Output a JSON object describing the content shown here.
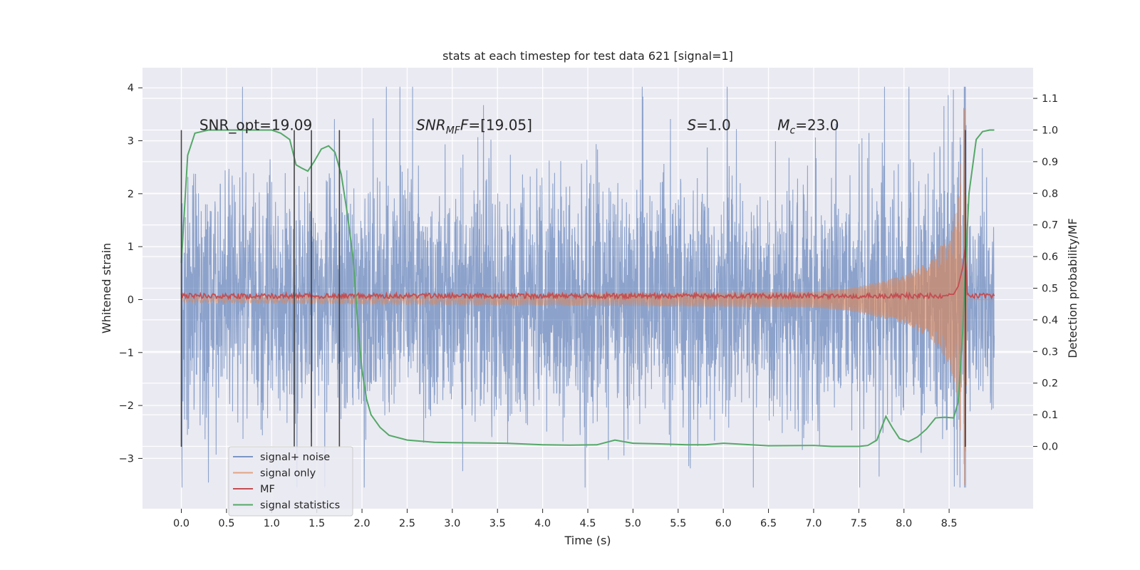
{
  "chart_data": {
    "type": "line",
    "title": "stats at each timestep for test data 621 [signal=1]",
    "xlabel": "Time (s)",
    "ylabel": "Whitened strain",
    "ylabel_right": "Detection probability/MF",
    "xlim": [
      -0.43,
      9.43
    ],
    "ylim": [
      -3.95,
      4.38
    ],
    "ylim_right": [
      -0.197,
      1.197
    ],
    "grid": true,
    "legend_placement": "lower-left",
    "x_ticks": [
      "0.0",
      "0.5",
      "1.0",
      "1.5",
      "2.0",
      "2.5",
      "3.0",
      "3.5",
      "4.0",
      "4.5",
      "5.0",
      "5.5",
      "6.0",
      "6.5",
      "7.0",
      "7.5",
      "8.0",
      "8.5"
    ],
    "x_tick_values": [
      0,
      0.5,
      1,
      1.5,
      2,
      2.5,
      3,
      3.5,
      4,
      4.5,
      5,
      5.5,
      6,
      6.5,
      7,
      7.5,
      8,
      8.5
    ],
    "y_ticks": [
      "−3",
      "−2",
      "−1",
      "0",
      "1",
      "2",
      "3",
      "4"
    ],
    "y_tick_values": [
      -3,
      -2,
      -1,
      0,
      1,
      2,
      3,
      4
    ],
    "y_right_ticks": [
      "0.0",
      "0.1",
      "0.2",
      "0.3",
      "0.4",
      "0.5",
      "0.6",
      "0.7",
      "0.8",
      "0.9",
      "1.0",
      "1.1"
    ],
    "y_right_tick_values": [
      0,
      0.1,
      0.2,
      0.3,
      0.4,
      0.5,
      0.6,
      0.7,
      0.8,
      0.9,
      1.0,
      1.1
    ],
    "annotations": [
      {
        "label": "SNR_opt=19.09",
        "x": 0.2,
        "y": 3.3
      },
      {
        "label": "SNR_MF=[19.05]",
        "x": 2.6,
        "y": 3.3,
        "base": "SNR",
        "sub": "MF",
        "tail": "F=[19.05]"
      },
      {
        "label": "S=1.0",
        "x": 5.6,
        "y": 3.3,
        "base": "S",
        "sub": "",
        "tail": "=1.0"
      },
      {
        "label": "M_c=23.0",
        "x": 6.6,
        "y": 3.3,
        "base": "M",
        "sub": "c",
        "tail": "=23.0"
      }
    ],
    "vertical_lines": {
      "x": [
        0.0,
        1.25,
        1.44,
        1.75,
        8.68
      ],
      "y_range": [
        -2.78,
        3.2
      ],
      "color": "#444444"
    },
    "series": [
      {
        "name": "signal+ noise",
        "color": "#4c72b0",
        "opacity": 0.5,
        "x_range": [
          0.0,
          9.0
        ],
        "samples": 3600,
        "band": [
          -1.55,
          1.55
        ],
        "extremes": [
          -3.55,
          4.02
        ]
      },
      {
        "name": "signal only",
        "color": "#dd8452",
        "opacity": 0.5,
        "description_points": {
          "t": [
            0.0,
            7.0,
            7.5,
            8.0,
            8.3,
            8.5,
            8.6,
            8.65,
            8.68,
            8.7,
            9.0
          ],
          "amplitude": [
            0.05,
            0.15,
            0.25,
            0.45,
            0.75,
            1.25,
            1.9,
            3.4,
            3.8,
            0.05,
            0.0
          ]
        }
      },
      {
        "name": "MF",
        "color": "#c44e52",
        "x_range": [
          0.0,
          9.0
        ],
        "level": 0.07,
        "spread": 0.06,
        "peak": {
          "x": [
            8.55,
            8.6,
            8.65,
            8.68,
            8.7
          ],
          "y": [
            0.1,
            0.25,
            0.6,
            1.0,
            0.1
          ]
        }
      },
      {
        "name": "signal statistics",
        "color": "#55a868",
        "axis": "right",
        "x": [
          0.0,
          0.07,
          0.15,
          0.3,
          0.5,
          0.8,
          1.0,
          1.1,
          1.2,
          1.27,
          1.33,
          1.4,
          1.47,
          1.55,
          1.63,
          1.7,
          1.77,
          1.83,
          1.9,
          1.95,
          2.0,
          2.05,
          2.1,
          2.2,
          2.3,
          2.5,
          2.8,
          3.0,
          3.3,
          3.6,
          4.0,
          4.3,
          4.6,
          4.8,
          5.0,
          5.3,
          5.6,
          5.8,
          6.0,
          6.5,
          7.0,
          7.2,
          7.5,
          7.6,
          7.7,
          7.8,
          7.87,
          7.95,
          8.05,
          8.15,
          8.25,
          8.35,
          8.45,
          8.55,
          8.6,
          8.65,
          8.68,
          8.72,
          8.8,
          8.87,
          8.95,
          9.0
        ],
        "y": [
          0.58,
          0.92,
          0.99,
          1.0,
          1.0,
          1.0,
          1.0,
          0.99,
          0.97,
          0.89,
          0.88,
          0.87,
          0.9,
          0.94,
          0.95,
          0.93,
          0.86,
          0.75,
          0.6,
          0.4,
          0.24,
          0.15,
          0.1,
          0.06,
          0.035,
          0.02,
          0.013,
          0.012,
          0.011,
          0.01,
          0.005,
          0.004,
          0.005,
          0.02,
          0.01,
          0.008,
          0.005,
          0.005,
          0.01,
          0.002,
          0.003,
          0.0,
          0.0,
          0.003,
          0.02,
          0.095,
          0.06,
          0.025,
          0.015,
          0.03,
          0.055,
          0.09,
          0.092,
          0.09,
          0.14,
          0.36,
          0.56,
          0.8,
          0.97,
          0.995,
          1.0,
          1.0
        ]
      }
    ]
  }
}
